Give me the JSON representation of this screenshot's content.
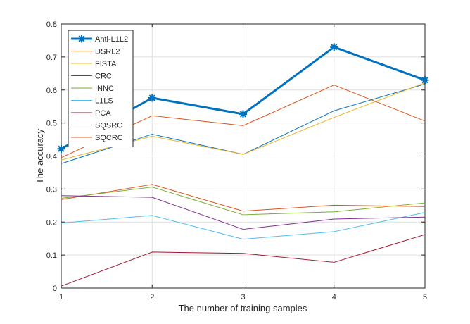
{
  "chart_data": {
    "type": "line",
    "title": "",
    "xlabel": "The number of training samples",
    "ylabel": "The accuracy",
    "x": [
      1,
      2,
      3,
      4,
      5
    ],
    "xlim": [
      1,
      5
    ],
    "ylim": [
      0,
      0.8
    ],
    "xticks": [
      "1",
      "2",
      "3",
      "4",
      "5"
    ],
    "yticks": [
      "0",
      "0.1",
      "0.2",
      "0.3",
      "0.4",
      "0.5",
      "0.6",
      "0.7",
      "0.8"
    ],
    "grid": true,
    "legend_position": "top-left",
    "series": [
      {
        "name": "Anti-L1L2",
        "color": "#0072BD",
        "marker": "star",
        "values": [
          0.422,
          0.576,
          0.527,
          0.73,
          0.63
        ]
      },
      {
        "name": "DSRL2",
        "color": "#D95319",
        "values": [
          0.395,
          0.522,
          0.492,
          0.615,
          0.506
        ]
      },
      {
        "name": "FISTA",
        "color": "#EDB120",
        "values": [
          0.388,
          0.46,
          0.405,
          0.517,
          0.622
        ]
      },
      {
        "name": "CRC",
        "color": "#7E2F8E",
        "values": [
          0.28,
          0.275,
          0.178,
          0.209,
          0.215
        ]
      },
      {
        "name": "INNC",
        "color": "#77AC30",
        "values": [
          0.272,
          0.306,
          0.222,
          0.231,
          0.258
        ]
      },
      {
        "name": "L1LS",
        "color": "#4DBEEE",
        "values": [
          0.197,
          0.22,
          0.148,
          0.171,
          0.229
        ]
      },
      {
        "name": "PCA",
        "color": "#A2142F",
        "values": [
          0.006,
          0.109,
          0.105,
          0.078,
          0.162
        ]
      },
      {
        "name": "SQSRC",
        "color": "#0072BD",
        "values": [
          0.377,
          0.466,
          0.405,
          0.537,
          0.618
        ]
      },
      {
        "name": "SQCRC",
        "color": "#D95319",
        "values": [
          0.268,
          0.314,
          0.233,
          0.251,
          0.247
        ]
      }
    ]
  }
}
